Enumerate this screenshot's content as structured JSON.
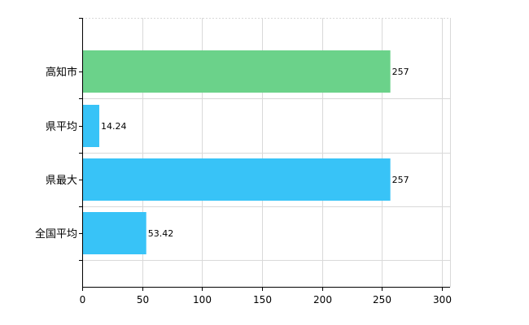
{
  "chart_data": {
    "type": "bar",
    "orientation": "horizontal",
    "categories": [
      "高知市",
      "県平均",
      "県最大",
      "全国平均"
    ],
    "values": [
      257,
      14.24,
      257,
      53.42
    ],
    "value_labels": [
      "257",
      "14.24",
      "257",
      "53.42"
    ],
    "bar_colors": [
      "#6bd28a",
      "#38c3f7",
      "#38c3f7",
      "#38c3f7"
    ],
    "xlim": [
      0,
      300
    ],
    "xticks": [
      0,
      50,
      100,
      150,
      200,
      250,
      300
    ],
    "grid": true,
    "legend": "none",
    "title": "",
    "xlabel": "",
    "ylabel": ""
  }
}
